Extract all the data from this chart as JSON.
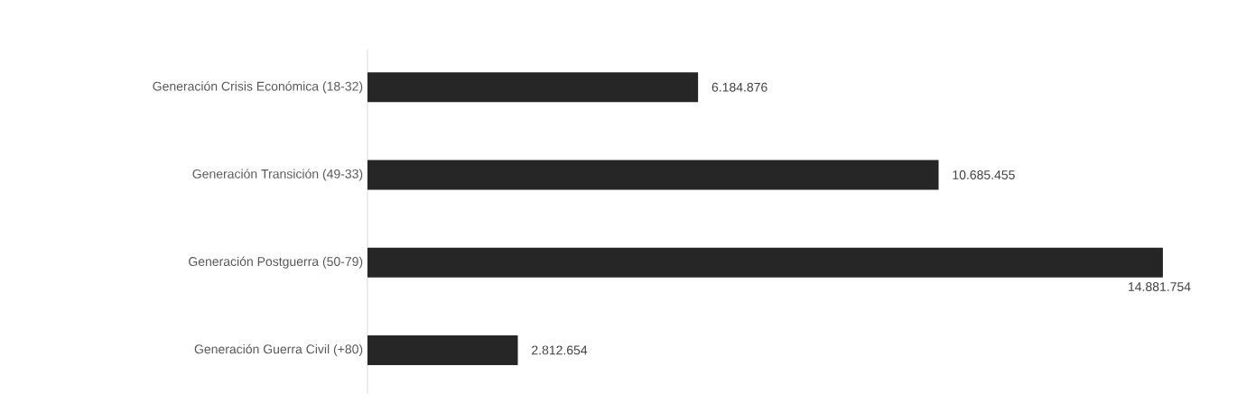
{
  "chart_data": {
    "type": "bar",
    "orientation": "horizontal",
    "categories": [
      "Generación Crisis Económica (18-32)",
      "Generación Transición (49-33)",
      "Generación Postguerra (50-79)",
      "Generación Guerra Civil (+80)"
    ],
    "values": [
      6184876,
      10685455,
      14881754,
      2812654
    ],
    "value_labels": [
      "6.184.876",
      "10.685.455",
      "14.881.754",
      "2.812.654"
    ],
    "color": "#262626"
  }
}
